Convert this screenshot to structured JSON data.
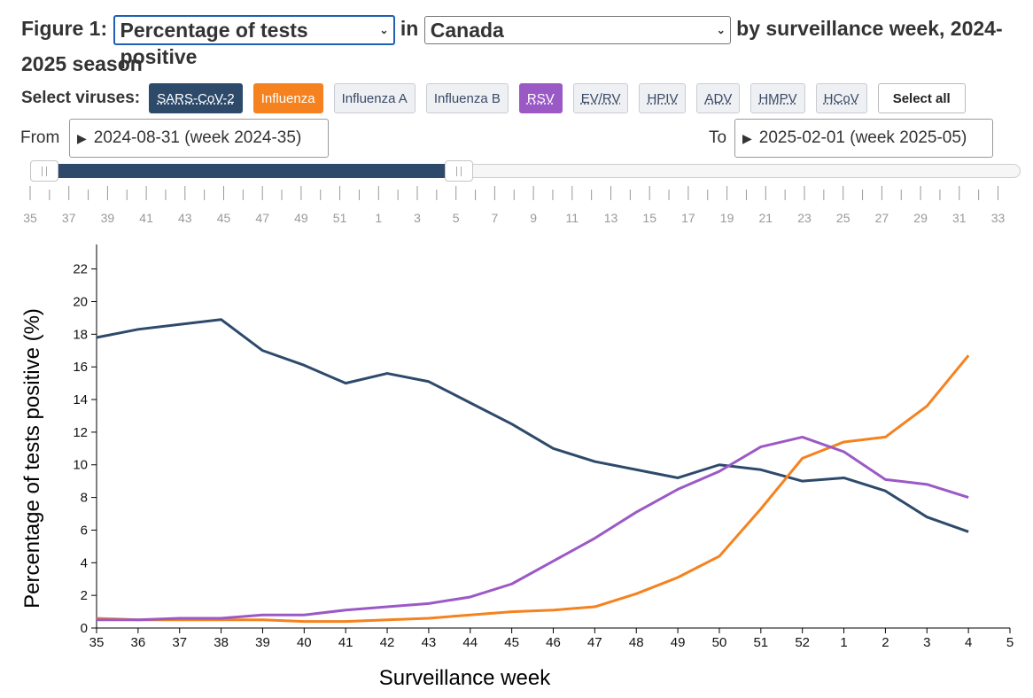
{
  "title": {
    "prefix": "Figure 1:",
    "measure_select": "Percentage of tests positive",
    "in_word": "in",
    "region_select": "Canada",
    "suffix": "by surveillance week, 2024-2025 season"
  },
  "virus_selector": {
    "label": "Select viruses:",
    "buttons": [
      "SARS-CoV-2",
      "Influenza",
      "Influenza A",
      "Influenza B",
      "RSV",
      "EV/RV",
      "HPIV",
      "ADV",
      "HMPV",
      "HCoV"
    ],
    "select_all": "Select all"
  },
  "range": {
    "from_label": "From",
    "from_value": "2024-08-31 (week 2024-35)",
    "to_label": "To",
    "to_value": "2025-02-01 (week 2025-05)"
  },
  "slider_ticks": [
    "35",
    "37",
    "39",
    "41",
    "43",
    "45",
    "47",
    "49",
    "51",
    "1",
    "3",
    "5",
    "7",
    "9",
    "11",
    "13",
    "15",
    "17",
    "19",
    "21",
    "23",
    "25",
    "27",
    "29",
    "31",
    "33"
  ],
  "colors": {
    "sars": "#2e4a6b",
    "influenza": "#f5821f",
    "rsv": "#9b59c6"
  },
  "chart_data": {
    "type": "line",
    "xlabel": "Surveillance week",
    "ylabel": "Percentage of tests positive (%)",
    "x": [
      "35",
      "36",
      "37",
      "38",
      "39",
      "40",
      "41",
      "42",
      "43",
      "44",
      "45",
      "46",
      "47",
      "48",
      "49",
      "50",
      "51",
      "52",
      "1",
      "2",
      "3",
      "4"
    ],
    "x_ticks": [
      "35",
      "36",
      "37",
      "38",
      "39",
      "40",
      "41",
      "42",
      "43",
      "44",
      "45",
      "46",
      "47",
      "48",
      "49",
      "50",
      "51",
      "52",
      "1",
      "2",
      "3",
      "4",
      "5"
    ],
    "y_ticks": [
      0,
      2,
      4,
      6,
      8,
      10,
      12,
      14,
      16,
      18,
      20,
      22
    ],
    "ylim": [
      0,
      23.5
    ],
    "grid": false,
    "series": [
      {
        "name": "SARS-CoV-2",
        "color": "#2e4a6b",
        "values": [
          17.8,
          18.3,
          18.6,
          18.9,
          17.0,
          16.1,
          15.0,
          15.6,
          15.1,
          13.8,
          12.5,
          11.0,
          10.2,
          9.7,
          9.2,
          10.0,
          9.7,
          9.0,
          9.2,
          8.4,
          6.8,
          5.9
        ]
      },
      {
        "name": "Influenza",
        "color": "#f5821f",
        "values": [
          0.6,
          0.5,
          0.5,
          0.5,
          0.5,
          0.4,
          0.4,
          0.5,
          0.6,
          0.8,
          1.0,
          1.1,
          1.3,
          2.1,
          3.1,
          4.4,
          7.3,
          10.4,
          11.4,
          11.7,
          13.6,
          16.7
        ]
      },
      {
        "name": "RSV",
        "color": "#9b59c6",
        "values": [
          0.5,
          0.5,
          0.6,
          0.6,
          0.8,
          0.8,
          1.1,
          1.3,
          1.5,
          1.9,
          2.7,
          4.1,
          5.5,
          7.1,
          8.5,
          9.6,
          11.1,
          11.7,
          10.8,
          9.1,
          8.8,
          8.0
        ]
      }
    ]
  }
}
